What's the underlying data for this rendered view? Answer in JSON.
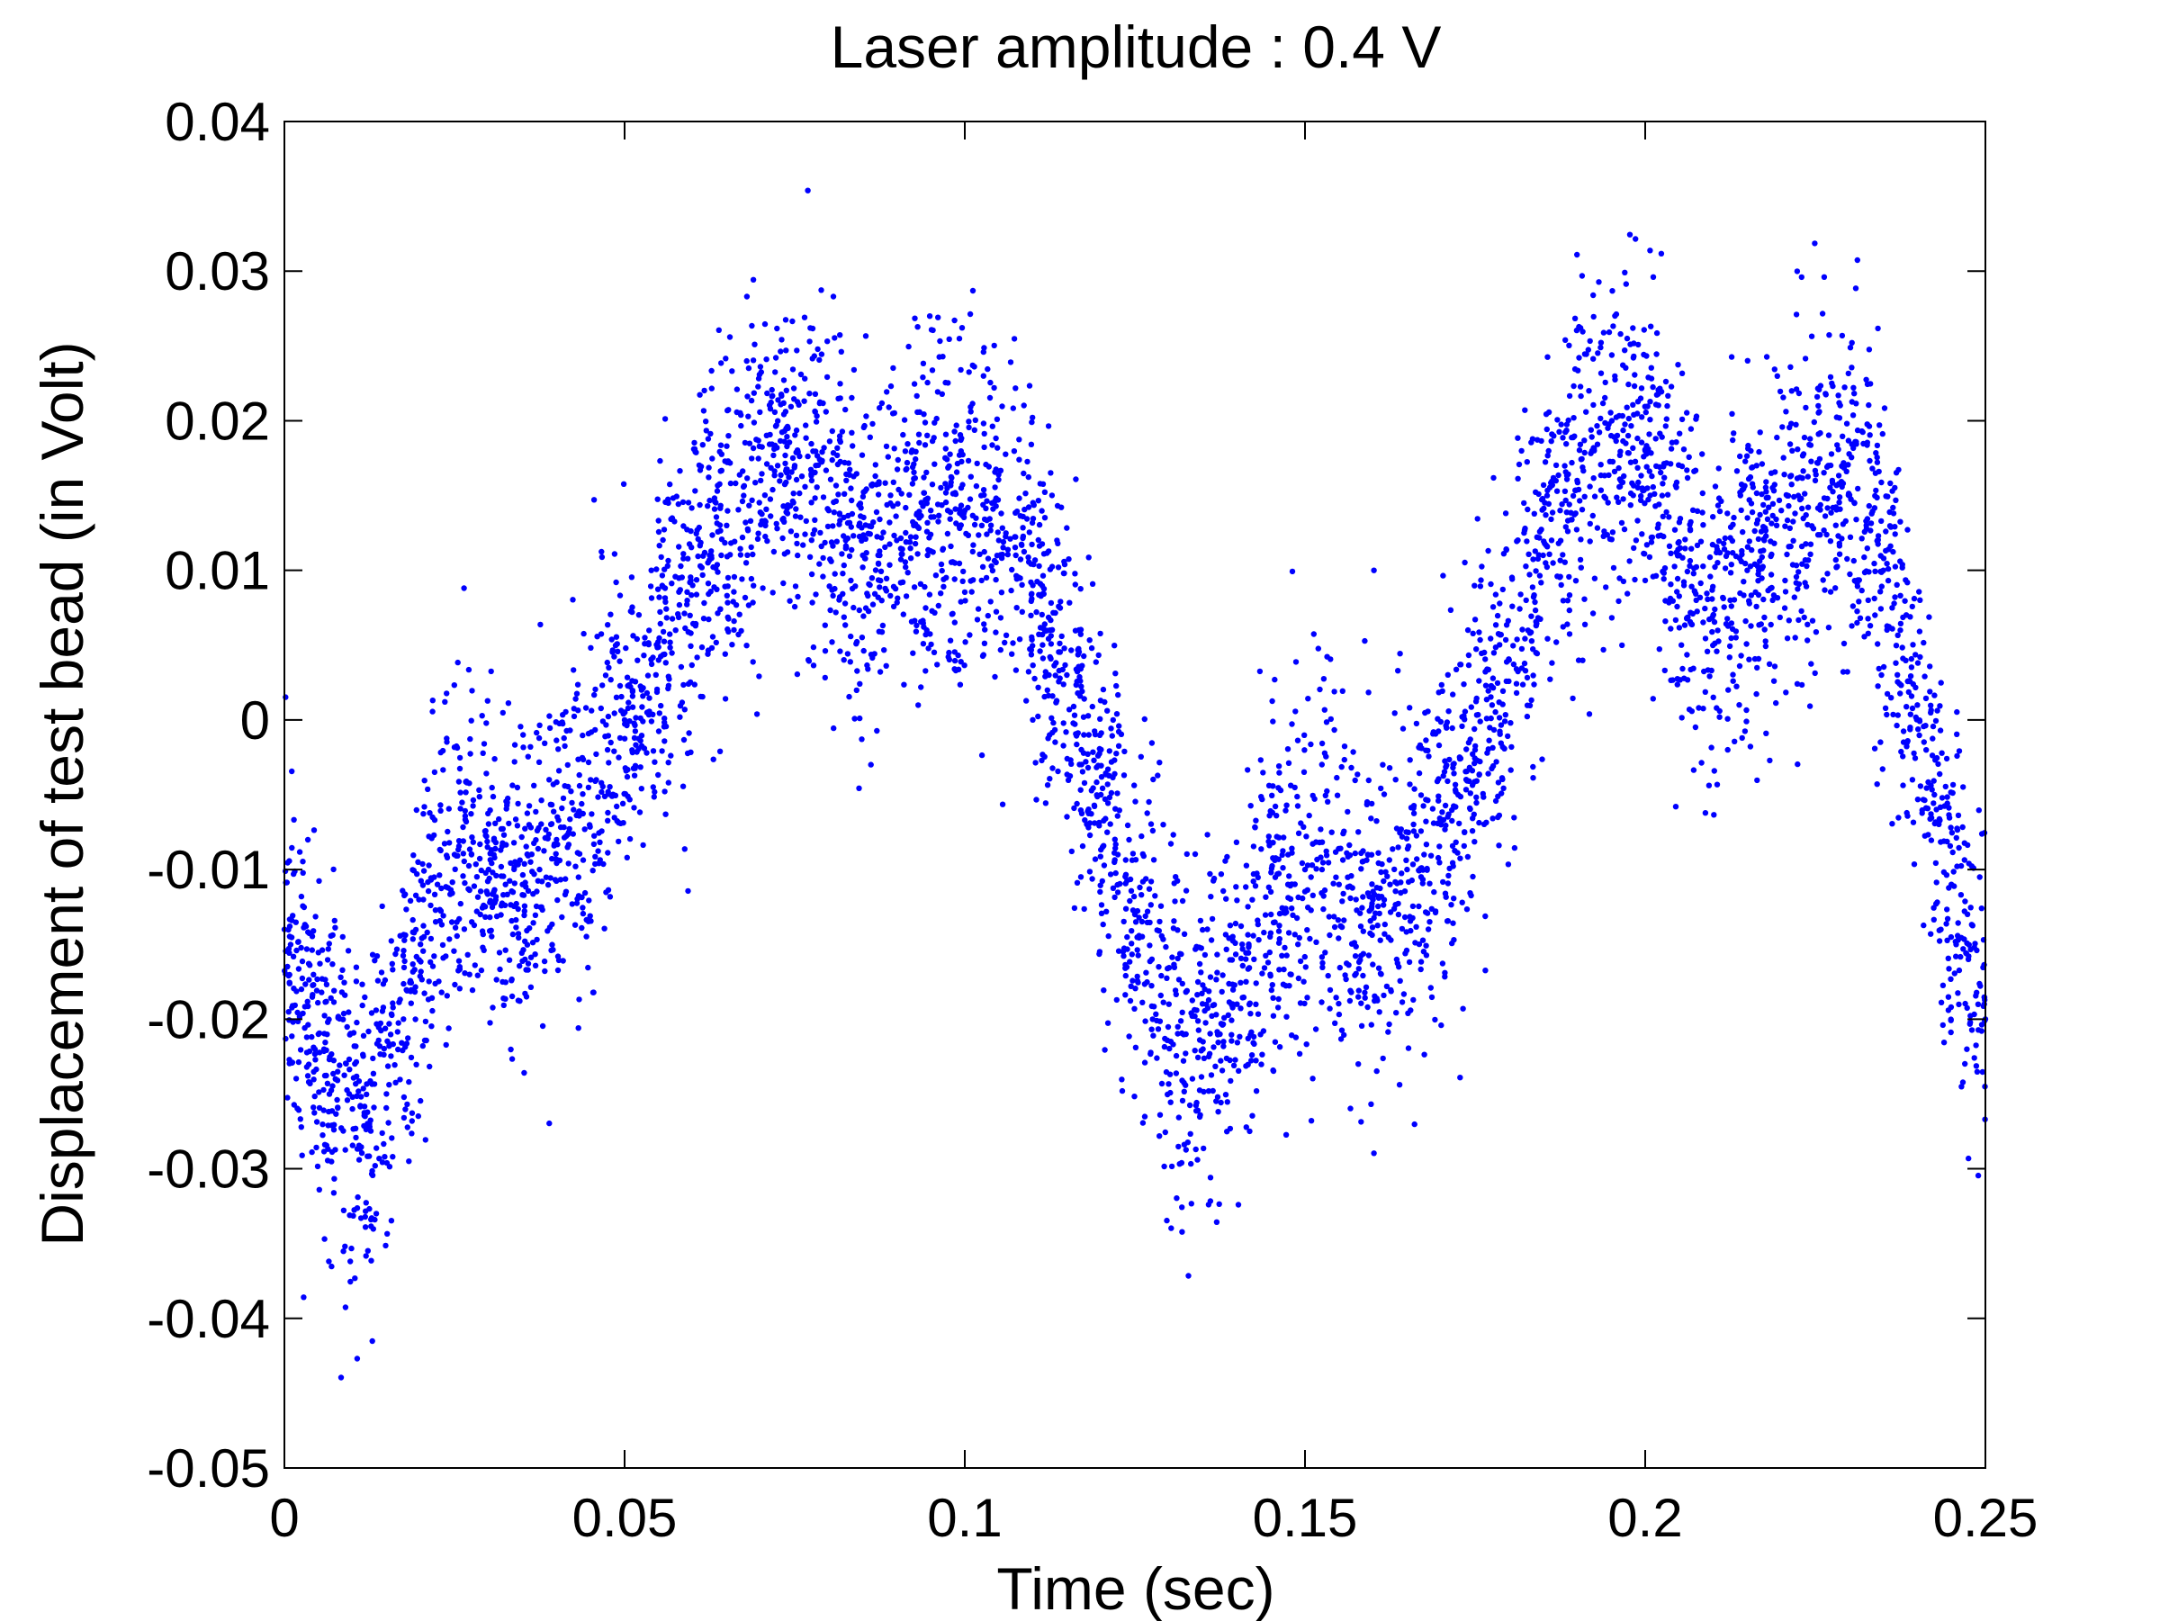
{
  "chart_data": {
    "type": "scatter",
    "title": "Laser amplitude : 0.4 V",
    "xlabel": "Time (sec)",
    "ylabel": "Displacement of test bead (in Volt)",
    "xlim": [
      0,
      0.25
    ],
    "ylim": [
      -0.05,
      0.04
    ],
    "x_ticks": [
      0,
      0.05,
      0.1,
      0.15,
      0.2,
      0.25
    ],
    "x_tick_labels": [
      "0",
      "0.05",
      "0.1",
      "0.15",
      "0.2",
      "0.25"
    ],
    "y_ticks": [
      0.04,
      0.03,
      0.02,
      0.01,
      0,
      -0.01,
      -0.02,
      -0.03,
      -0.04,
      -0.05
    ],
    "y_tick_labels": [
      "0.04",
      "0.03",
      "0.02",
      "0.01",
      "0",
      "-0.01",
      "-0.02",
      "-0.03",
      "-0.04",
      "-0.05"
    ],
    "grid": false,
    "legend": "none",
    "marker_color": "#0000ff",
    "series": [
      {
        "points": [
          [
            0.0,
            -0.014
          ],
          [
            0.0025,
            -0.018
          ],
          [
            0.005,
            -0.021
          ],
          [
            0.0075,
            -0.024
          ],
          [
            0.01,
            -0.026
          ],
          [
            0.0125,
            -0.027
          ],
          [
            0.015,
            -0.025
          ],
          [
            0.0175,
            -0.02
          ],
          [
            0.02,
            -0.015
          ],
          [
            0.0225,
            -0.011
          ],
          [
            0.025,
            -0.009
          ],
          [
            0.0275,
            -0.009
          ],
          [
            0.03,
            -0.01
          ],
          [
            0.0325,
            -0.011
          ],
          [
            0.035,
            -0.011
          ],
          [
            0.0375,
            -0.01
          ],
          [
            0.04,
            -0.008
          ],
          [
            0.0425,
            -0.006
          ],
          [
            0.045,
            -0.004
          ],
          [
            0.0475,
            -0.002
          ],
          [
            0.05,
            0.0
          ],
          [
            0.0525,
            0.002
          ],
          [
            0.055,
            0.004
          ],
          [
            0.0575,
            0.006
          ],
          [
            0.06,
            0.009
          ],
          [
            0.0625,
            0.011
          ],
          [
            0.065,
            0.013
          ],
          [
            0.0675,
            0.015
          ],
          [
            0.07,
            0.016
          ],
          [
            0.0725,
            0.017
          ],
          [
            0.075,
            0.017
          ],
          [
            0.0775,
            0.016
          ],
          [
            0.08,
            0.014
          ],
          [
            0.0825,
            0.012
          ],
          [
            0.085,
            0.011
          ],
          [
            0.0875,
            0.011
          ],
          [
            0.09,
            0.012
          ],
          [
            0.0925,
            0.013
          ],
          [
            0.095,
            0.014
          ],
          [
            0.0975,
            0.014
          ],
          [
            0.1,
            0.014
          ],
          [
            0.1025,
            0.013
          ],
          [
            0.105,
            0.012
          ],
          [
            0.1075,
            0.011
          ],
          [
            0.11,
            0.009
          ],
          [
            0.1125,
            0.006
          ],
          [
            0.115,
            0.003
          ],
          [
            0.1175,
            -0.001
          ],
          [
            0.12,
            -0.005
          ],
          [
            0.1225,
            -0.009
          ],
          [
            0.125,
            -0.013
          ],
          [
            0.1275,
            -0.016
          ],
          [
            0.13,
            -0.019
          ],
          [
            0.1325,
            -0.021
          ],
          [
            0.135,
            -0.022
          ],
          [
            0.1375,
            -0.021
          ],
          [
            0.14,
            -0.019
          ],
          [
            0.1425,
            -0.016
          ],
          [
            0.145,
            -0.013
          ],
          [
            0.1475,
            -0.011
          ],
          [
            0.15,
            -0.01
          ],
          [
            0.1525,
            -0.01
          ],
          [
            0.155,
            -0.011
          ],
          [
            0.1575,
            -0.012
          ],
          [
            0.16,
            -0.012
          ],
          [
            0.1625,
            -0.011
          ],
          [
            0.165,
            -0.01
          ],
          [
            0.1675,
            -0.009
          ],
          [
            0.17,
            -0.007
          ],
          [
            0.1725,
            -0.005
          ],
          [
            0.175,
            -0.002
          ],
          [
            0.1775,
            0.001
          ],
          [
            0.18,
            0.004
          ],
          [
            0.1825,
            0.008
          ],
          [
            0.185,
            0.011
          ],
          [
            0.1875,
            0.014
          ],
          [
            0.19,
            0.016
          ],
          [
            0.1925,
            0.018
          ],
          [
            0.195,
            0.019
          ],
          [
            0.1975,
            0.019
          ],
          [
            0.2,
            0.018
          ],
          [
            0.2025,
            0.015
          ],
          [
            0.205,
            0.011
          ],
          [
            0.2075,
            0.008
          ],
          [
            0.21,
            0.007
          ],
          [
            0.2125,
            0.008
          ],
          [
            0.215,
            0.01
          ],
          [
            0.2175,
            0.012
          ],
          [
            0.22,
            0.014
          ],
          [
            0.2225,
            0.015
          ],
          [
            0.225,
            0.016
          ],
          [
            0.2275,
            0.016
          ],
          [
            0.23,
            0.015
          ],
          [
            0.2325,
            0.013
          ],
          [
            0.235,
            0.01
          ],
          [
            0.2375,
            0.006
          ],
          [
            0.24,
            0.001
          ],
          [
            0.2425,
            -0.005
          ],
          [
            0.245,
            -0.011
          ],
          [
            0.2475,
            -0.016
          ],
          [
            0.25,
            -0.02
          ]
        ]
      }
    ]
  }
}
